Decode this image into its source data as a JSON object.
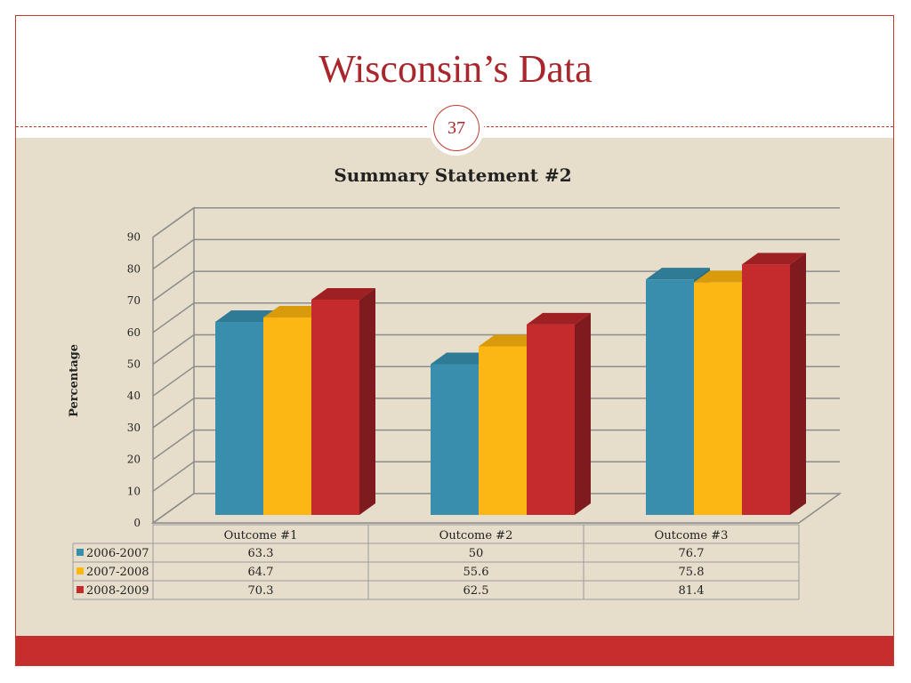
{
  "slide": {
    "title": "Wisconsin’s Data",
    "page_number": "37"
  },
  "colors": {
    "accent": "#a8262c",
    "footer": "#c62d2d",
    "background": "#e6decb"
  },
  "chart_data": {
    "type": "bar",
    "title": "Summary Statement #2",
    "xlabel": "",
    "ylabel": "Percentage",
    "ylim": [
      0,
      90
    ],
    "yticks": [
      0,
      10,
      20,
      30,
      40,
      50,
      60,
      70,
      80,
      90
    ],
    "categories": [
      "Outcome #1",
      "Outcome #2",
      "Outcome #3"
    ],
    "series": [
      {
        "name": "2006-2007",
        "values": [
          63.3,
          50,
          76.7
        ],
        "display": [
          "63.3",
          "50",
          "76.7"
        ],
        "color": "#3a8ead",
        "side": "#2b6e86",
        "top": "#2f7a95"
      },
      {
        "name": "2007-2008",
        "values": [
          64.7,
          55.6,
          75.8
        ],
        "display": [
          "64.7",
          "55.6",
          "75.8"
        ],
        "color": "#fcb714",
        "side": "#c98f0a",
        "top": "#d99a0c"
      },
      {
        "name": "2008-2009",
        "values": [
          70.3,
          62.5,
          81.4
        ],
        "display": [
          "70.3",
          "62.5",
          "81.4"
        ],
        "color": "#c52a2d",
        "side": "#7f1b1e",
        "top": "#9e2023"
      }
    ],
    "legend": "table-bottom",
    "grid": true
  }
}
